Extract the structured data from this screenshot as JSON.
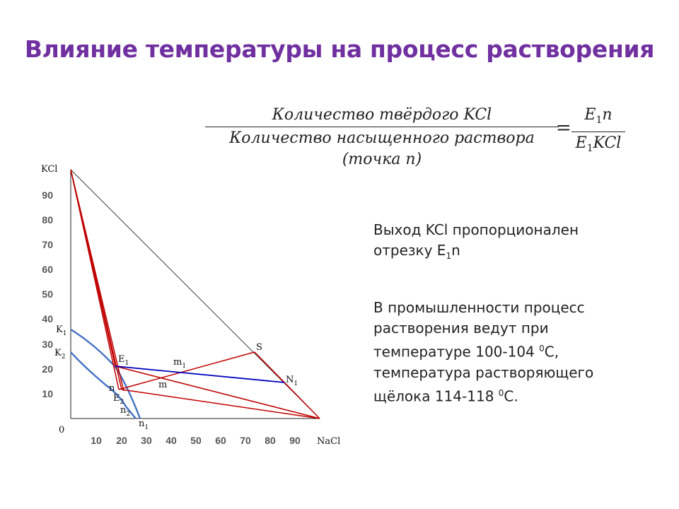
{
  "title": "Влияние температуры на процесс растворения",
  "formula": {
    "left_num": "Количество твёрдого KCl",
    "left_den": "Количество насыщенного раствора (точка n)",
    "right_num_a": "E",
    "right_num_sub": "1",
    "right_num_b": "n",
    "right_den_a": "E",
    "right_den_sub": "1",
    "right_den_b": "KCl",
    "equals": "="
  },
  "text": {
    "p1_a": "Выход KCl пропорционален отрезку E",
    "p1_sub": "1",
    "p1_b": "n",
    "p2_a": "В промышленности процесс растворения ведут при температуре 100-104 ",
    "p2_sup1": "0",
    "p2_b": "С, температура растворяющего щёлока 114-118 ",
    "p2_sup2": "0",
    "p2_c": "С."
  },
  "diagram": {
    "y_axis_label": "KCl",
    "x_axis_label": "NaCl",
    "origin_label": "0",
    "x_ticks": [
      "10",
      "20",
      "30",
      "40",
      "50",
      "60",
      "70",
      "80",
      "90"
    ],
    "y_ticks": [
      "10",
      "20",
      "30",
      "40",
      "50",
      "60",
      "70",
      "80",
      "90"
    ],
    "points": {
      "K1": {
        "main": "K",
        "sub": "1"
      },
      "K2": {
        "main": "K",
        "sub": "2"
      },
      "E1": {
        "main": "E",
        "sub": "1"
      },
      "E2": {
        "main": "E",
        "sub": "2"
      },
      "m1": {
        "main": "m",
        "sub": "1"
      },
      "m": {
        "main": "m",
        "sub": ""
      },
      "n": {
        "main": "n",
        "sub": ""
      },
      "n1": {
        "main": "n",
        "sub": "1"
      },
      "n2": {
        "main": "n",
        "sub": "2"
      },
      "N1": {
        "main": "N",
        "sub": "1"
      },
      "S": {
        "main": "S",
        "sub": ""
      }
    },
    "colors": {
      "red": "#c00000",
      "blue_line": "#0000c0",
      "curve": "#4472c4",
      "axis": "#222222"
    }
  }
}
